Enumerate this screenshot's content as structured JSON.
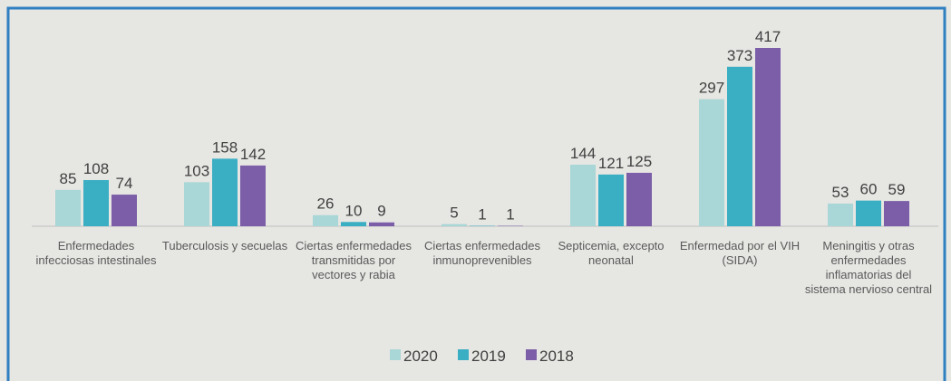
{
  "chart_data": {
    "type": "bar",
    "categories": [
      "Enfermedades infecciosas intestinales",
      "Tuberculosis y secuelas",
      "Ciertas enfermedades transmitidas por vectores y rabia",
      "Ciertas enfermedades inmunoprevenibles",
      "Septicemia, excepto neonatal",
      "Enfermedad por el VIH (SIDA)",
      "Meningitis y otras enfermedades inflamatorias del sistema nervioso central"
    ],
    "series": [
      {
        "name": "2020",
        "color": "#a9d6d6",
        "values": [
          85,
          103,
          26,
          5,
          144,
          297,
          53
        ]
      },
      {
        "name": "2019",
        "color": "#3aaec3",
        "values": [
          108,
          158,
          10,
          1,
          121,
          373,
          60
        ]
      },
      {
        "name": "2018",
        "color": "#7b5ea7",
        "values": [
          74,
          142,
          9,
          1,
          125,
          417,
          59
        ]
      }
    ],
    "legend": "bottom"
  }
}
